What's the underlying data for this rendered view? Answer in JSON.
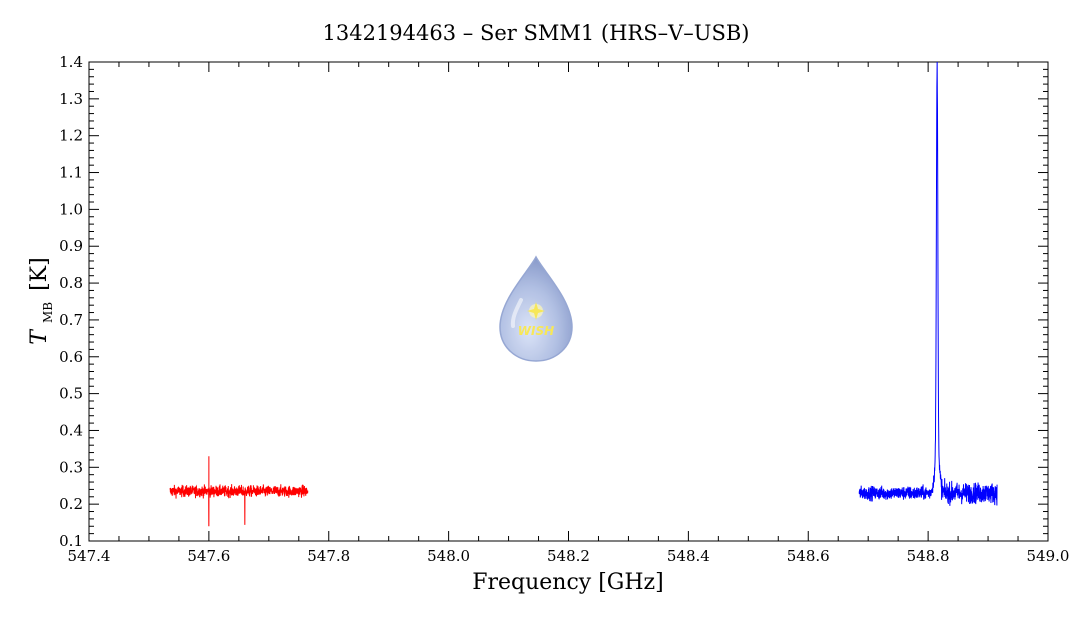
{
  "chart_data": {
    "type": "line",
    "title": "1342194463 – Ser SMM1 (HRS–V–USB)",
    "xlabel": "Frequency [GHz]",
    "ylabel": {
      "symbol": "T",
      "subscript": "MB",
      "unit": "[K]"
    },
    "xlim": [
      547.4,
      549.0
    ],
    "ylim": [
      0.1,
      1.4
    ],
    "x_ticks": [
      "547.4",
      "547.6",
      "547.8",
      "548.0",
      "548.2",
      "548.4",
      "548.6",
      "548.8",
      "549.0"
    ],
    "y_ticks": [
      "0.1",
      "0.2",
      "0.3",
      "0.4",
      "0.5",
      "0.6",
      "0.7",
      "0.8",
      "0.9",
      "1.0",
      "1.1",
      "1.2",
      "1.3",
      "1.4"
    ],
    "grid": false,
    "series": [
      {
        "color": "#ff0000",
        "x_range": [
          547.535,
          547.765
        ],
        "baseline": 0.235,
        "noise_amplitude": 0.025,
        "spikes": [
          {
            "x": 547.6,
            "y": 0.33
          },
          {
            "x": 547.6,
            "y": 0.14
          },
          {
            "x": 547.66,
            "y": 0.145
          }
        ]
      },
      {
        "color": "#0000ff",
        "x_range": [
          548.685,
          548.915
        ],
        "baseline": 0.23,
        "noise_amplitude": 0.03,
        "peak": {
          "x": 548.815,
          "y": 1.29
        }
      }
    ]
  },
  "logo": {
    "text": "WISH",
    "colors": {
      "drop": "#a9b9e0",
      "text": "#f7e64a"
    }
  }
}
